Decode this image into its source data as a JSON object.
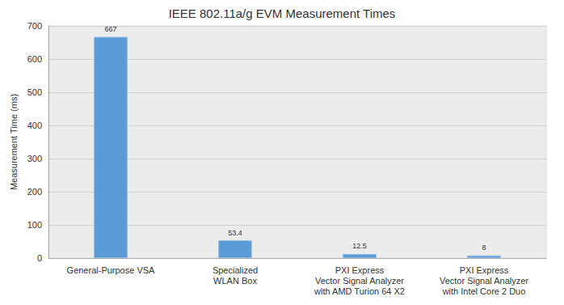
{
  "chart_data": {
    "type": "bar",
    "title": "IEEE 802.11a/g EVM Measurement Times",
    "y_label": "Measurement Time (ms)",
    "categories": [
      "General-Purpose VSA",
      "Specialized\nWLAN Box",
      "PXI Express\nVector Signal Analyzer\nwith AMD Turion 64 X2",
      "PXI Express\nVector Signal Analyzer\nwith Intel Core 2 Duo"
    ],
    "values": [
      667,
      53.4,
      12.5,
      8
    ],
    "color": "#5b9bd5",
    "ylim": [
      0,
      700
    ],
    "yticks": [
      0,
      100,
      200,
      300,
      400,
      500,
      600,
      700
    ],
    "grid": true,
    "data_labels": true
  }
}
